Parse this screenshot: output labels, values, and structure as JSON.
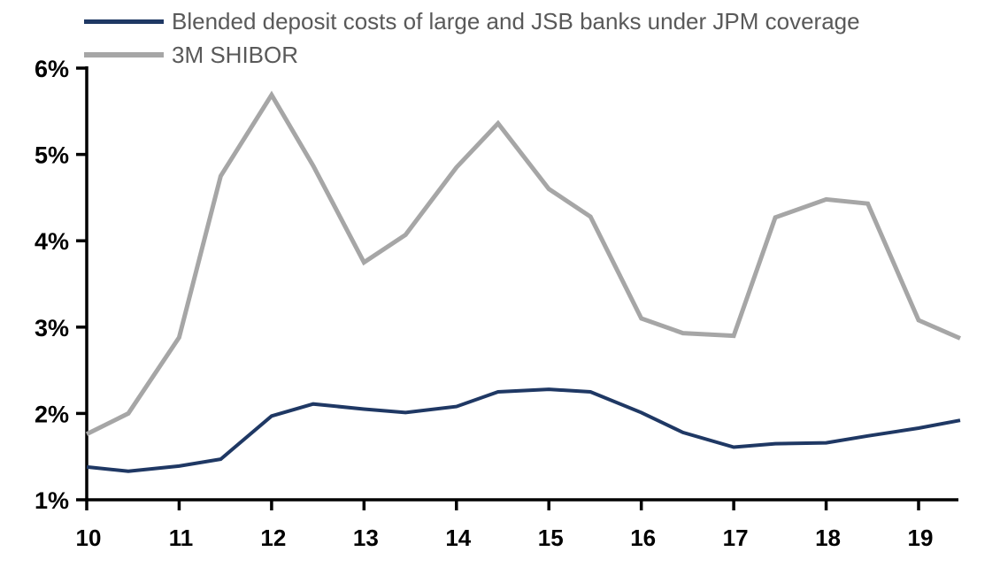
{
  "chart_data": {
    "type": "line",
    "x": [
      10,
      10.45,
      11,
      11.45,
      12,
      12.45,
      13,
      13.45,
      14,
      14.45,
      15,
      15.45,
      16,
      16.45,
      17,
      17.45,
      18,
      18.45,
      19,
      19.45
    ],
    "series": [
      {
        "name": "Blended deposit costs of large and JSB banks under JPM coverage",
        "color": "#1F3864",
        "line_width": 4,
        "values": [
          1.38,
          1.33,
          1.39,
          1.47,
          1.97,
          2.11,
          2.05,
          2.01,
          2.08,
          2.25,
          2.28,
          2.25,
          2.01,
          1.78,
          1.61,
          1.65,
          1.66,
          1.74,
          1.83,
          1.92
        ]
      },
      {
        "name": "3M SHIBOR",
        "color": "#A6A6A6",
        "line_width": 5,
        "values": [
          1.76,
          2.0,
          2.88,
          4.75,
          5.69,
          4.87,
          3.75,
          4.07,
          4.85,
          5.36,
          4.6,
          4.28,
          3.1,
          2.93,
          2.9,
          4.27,
          4.48,
          4.43,
          3.08,
          2.87
        ]
      }
    ],
    "x_tick_labels": [
      "10",
      "11",
      "12",
      "13",
      "14",
      "15",
      "16",
      "17",
      "18",
      "19"
    ],
    "x_tick_values": [
      10,
      11,
      12,
      13,
      14,
      15,
      16,
      17,
      18,
      19
    ],
    "y_tick_labels": [
      "1%",
      "2%",
      "3%",
      "4%",
      "5%",
      "6%"
    ],
    "y_tick_values": [
      1,
      2,
      3,
      4,
      5,
      6
    ],
    "ylim": [
      1,
      6
    ],
    "xlim": [
      10,
      19.43
    ],
    "grid": false,
    "legend_position": "top-left",
    "axis_color": "#000000"
  }
}
